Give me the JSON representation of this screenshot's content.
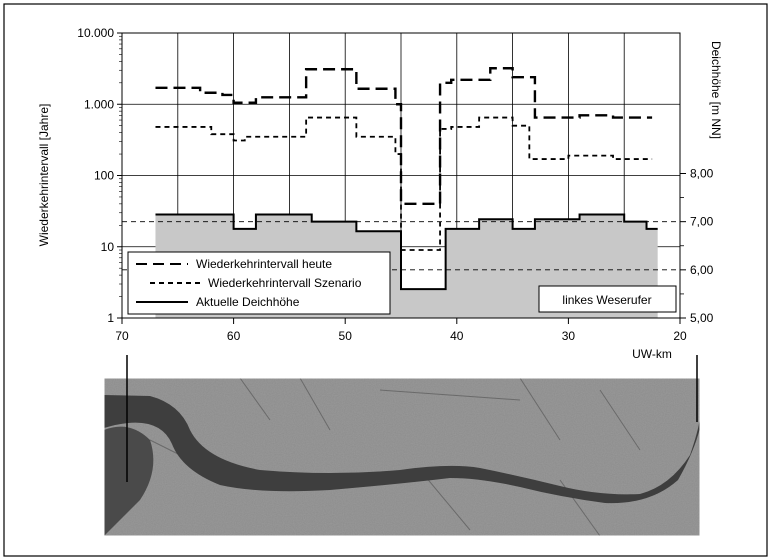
{
  "chart_data": {
    "type": "line",
    "x_axis": {
      "label": "UW-km",
      "ticks": [
        70,
        60,
        50,
        40,
        30,
        20
      ],
      "range": [
        70,
        20
      ],
      "reversed": true,
      "grid": true
    },
    "y_left": {
      "label": "Wiederkehrintervall [Jahre]",
      "scale": "log",
      "range": [
        1,
        10000
      ],
      "ticks": [
        1,
        10,
        100,
        1000,
        10000
      ],
      "tick_labels": [
        "1",
        "10",
        "100",
        "1.000",
        "10.000"
      ],
      "grid": true
    },
    "y_right": {
      "label": "Deichhöhe [m NN]",
      "range": [
        5.0,
        8.0
      ],
      "ticks": [
        5.0,
        6.0,
        7.0,
        8.0
      ],
      "tick_labels": [
        "5,00",
        "6,00",
        "7,00",
        "8,00"
      ]
    },
    "series": [
      {
        "name": "Wiederkehrintervall heute",
        "axis": "left",
        "style": "long-dash",
        "color": "#000000",
        "steps": [
          {
            "x0": 67,
            "x1": 63,
            "y": 1700
          },
          {
            "x0": 63,
            "x1": 61,
            "y": 1450
          },
          {
            "x0": 61,
            "x1": 60,
            "y": 1350
          },
          {
            "x0": 60,
            "x1": 58,
            "y": 1050
          },
          {
            "x0": 58,
            "x1": 53.5,
            "y": 1250
          },
          {
            "x0": 53.5,
            "x1": 49,
            "y": 3100
          },
          {
            "x0": 49,
            "x1": 45.5,
            "y": 1650
          },
          {
            "x0": 45.5,
            "x1": 45,
            "y": 1000
          },
          {
            "x0": 45,
            "x1": 41.5,
            "y": 40
          },
          {
            "x0": 41.5,
            "x1": 40.5,
            "y": 2000
          },
          {
            "x0": 40.5,
            "x1": 37,
            "y": 2200
          },
          {
            "x0": 37,
            "x1": 35,
            "y": 3200
          },
          {
            "x0": 35,
            "x1": 33,
            "y": 2400
          },
          {
            "x0": 33,
            "x1": 29,
            "y": 650
          },
          {
            "x0": 29,
            "x1": 26,
            "y": 700
          },
          {
            "x0": 26,
            "x1": 22.5,
            "y": 650
          }
        ]
      },
      {
        "name": "Wiederkehrintervall Szenario",
        "axis": "left",
        "style": "short-dash",
        "color": "#000000",
        "steps": [
          {
            "x0": 67,
            "x1": 62,
            "y": 480
          },
          {
            "x0": 62,
            "x1": 60,
            "y": 380
          },
          {
            "x0": 60,
            "x1": 59,
            "y": 310
          },
          {
            "x0": 59,
            "x1": 53.5,
            "y": 350
          },
          {
            "x0": 53.5,
            "x1": 49,
            "y": 650
          },
          {
            "x0": 49,
            "x1": 45.5,
            "y": 350
          },
          {
            "x0": 45.5,
            "x1": 45,
            "y": 200
          },
          {
            "x0": 45,
            "x1": 41.5,
            "y": 9
          },
          {
            "x0": 41.5,
            "x1": 40.5,
            "y": 450
          },
          {
            "x0": 40.5,
            "x1": 38,
            "y": 480
          },
          {
            "x0": 38,
            "x1": 35,
            "y": 650
          },
          {
            "x0": 35,
            "x1": 33.5,
            "y": 500
          },
          {
            "x0": 33.5,
            "x1": 30,
            "y": 170
          },
          {
            "x0": 30,
            "x1": 26,
            "y": 190
          },
          {
            "x0": 26,
            "x1": 22.5,
            "y": 170
          }
        ]
      },
      {
        "name": "Aktuelle Deichhöhe",
        "axis": "right",
        "style": "solid",
        "fill": true,
        "color": "#000000",
        "fill_color": "#c8c8c8",
        "steps": [
          {
            "x0": 67,
            "x1": 60,
            "y": 7.15
          },
          {
            "x0": 60,
            "x1": 58,
            "y": 6.85
          },
          {
            "x0": 58,
            "x1": 53,
            "y": 7.15
          },
          {
            "x0": 53,
            "x1": 49,
            "y": 7.0
          },
          {
            "x0": 49,
            "x1": 45,
            "y": 6.8
          },
          {
            "x0": 45,
            "x1": 41,
            "y": 5.6
          },
          {
            "x0": 41,
            "x1": 38,
            "y": 6.85
          },
          {
            "x0": 38,
            "x1": 35,
            "y": 7.05
          },
          {
            "x0": 35,
            "x1": 33,
            "y": 6.85
          },
          {
            "x0": 33,
            "x1": 29,
            "y": 7.05
          },
          {
            "x0": 29,
            "x1": 25,
            "y": 7.15
          },
          {
            "x0": 25,
            "x1": 23,
            "y": 7.0
          },
          {
            "x0": 23,
            "x1": 22,
            "y": 6.85
          }
        ]
      }
    ],
    "reference_lines": [
      {
        "axis": "right",
        "y": 7.0,
        "style": "thin-dash"
      },
      {
        "axis": "right",
        "y": 6.0,
        "style": "thin-dash"
      }
    ],
    "legend": {
      "placement": "bottom-left",
      "entries": [
        "Wiederkehrintervall heute",
        "Wiederkehrintervall Szenario",
        "Aktuelle Deichhöhe"
      ]
    },
    "annotations": [
      "linkes Weserufer"
    ],
    "inset_image": {
      "description_icon": "satellite-map-icon",
      "markers_at_km": [
        70,
        20
      ]
    }
  }
}
